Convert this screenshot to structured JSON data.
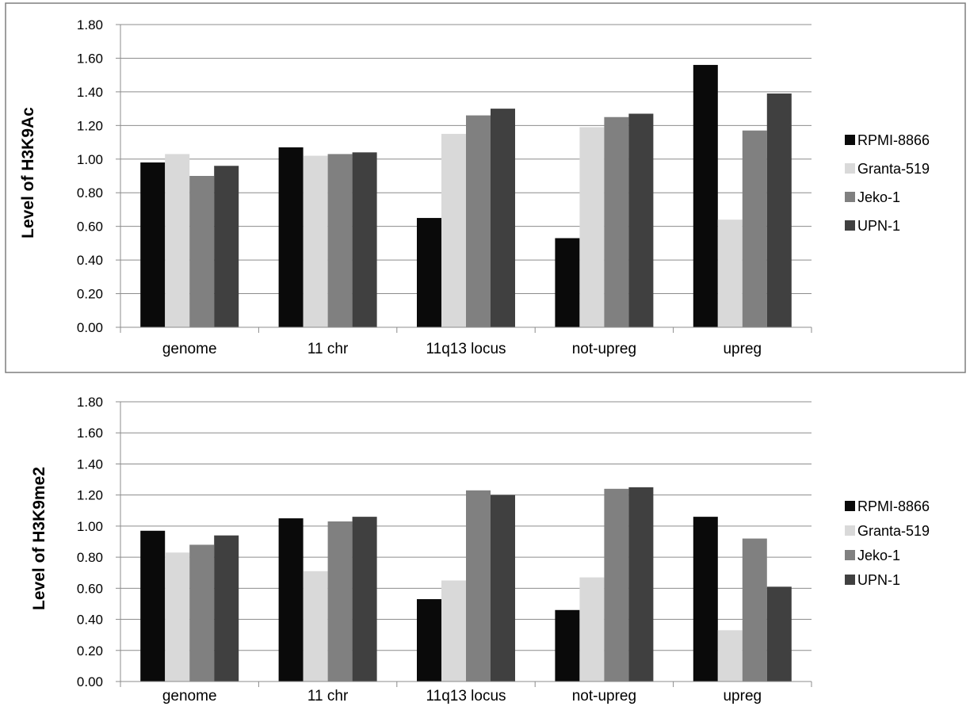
{
  "chart_data": [
    {
      "type": "bar",
      "ylabel": "Level  of  H3K9Ac",
      "xlabel": "",
      "ylim": [
        0,
        1.8
      ],
      "yticks": [
        "0.00",
        "0.20",
        "0.40",
        "0.60",
        "0.80",
        "1.00",
        "1.20",
        "1.40",
        "1.60",
        "1.80"
      ],
      "grid": true,
      "legend_position": "right",
      "categories": [
        "genome",
        "11 chr",
        "11q13 locus",
        "not-upreg",
        "upreg"
      ],
      "series": [
        {
          "name": "RPMI-8866",
          "color": "#0a0a0a",
          "values": [
            0.98,
            1.07,
            0.65,
            0.53,
            1.56
          ]
        },
        {
          "name": "Granta-519",
          "color": "#d9d9d9",
          "values": [
            1.03,
            1.02,
            1.15,
            1.19,
            0.64
          ]
        },
        {
          "name": "Jeko-1",
          "color": "#808080",
          "values": [
            0.9,
            1.03,
            1.26,
            1.25,
            1.17
          ]
        },
        {
          "name": "UPN-1",
          "color": "#404040",
          "values": [
            0.96,
            1.04,
            1.3,
            1.27,
            1.39
          ]
        }
      ]
    },
    {
      "type": "bar",
      "ylabel": "Level  of  H3K9me2",
      "xlabel": "",
      "ylim": [
        0,
        1.8
      ],
      "yticks": [
        "0.00",
        "0.20",
        "0.40",
        "0.60",
        "0.80",
        "1.00",
        "1.20",
        "1.40",
        "1.60",
        "1.80"
      ],
      "grid": true,
      "legend_position": "right",
      "categories": [
        "genome",
        "11 chr",
        "11q13 locus",
        "not-upreg",
        "upreg"
      ],
      "series": [
        {
          "name": "RPMI-8866",
          "color": "#0a0a0a",
          "values": [
            0.97,
            1.05,
            0.53,
            0.46,
            1.06
          ]
        },
        {
          "name": "Granta-519",
          "color": "#d9d9d9",
          "values": [
            0.83,
            0.71,
            0.65,
            0.67,
            0.33
          ]
        },
        {
          "name": "Jeko-1",
          "color": "#808080",
          "values": [
            0.88,
            1.03,
            1.23,
            1.24,
            0.92
          ]
        },
        {
          "name": "UPN-1",
          "color": "#404040",
          "values": [
            0.94,
            1.06,
            1.2,
            1.25,
            0.61
          ]
        }
      ]
    }
  ]
}
